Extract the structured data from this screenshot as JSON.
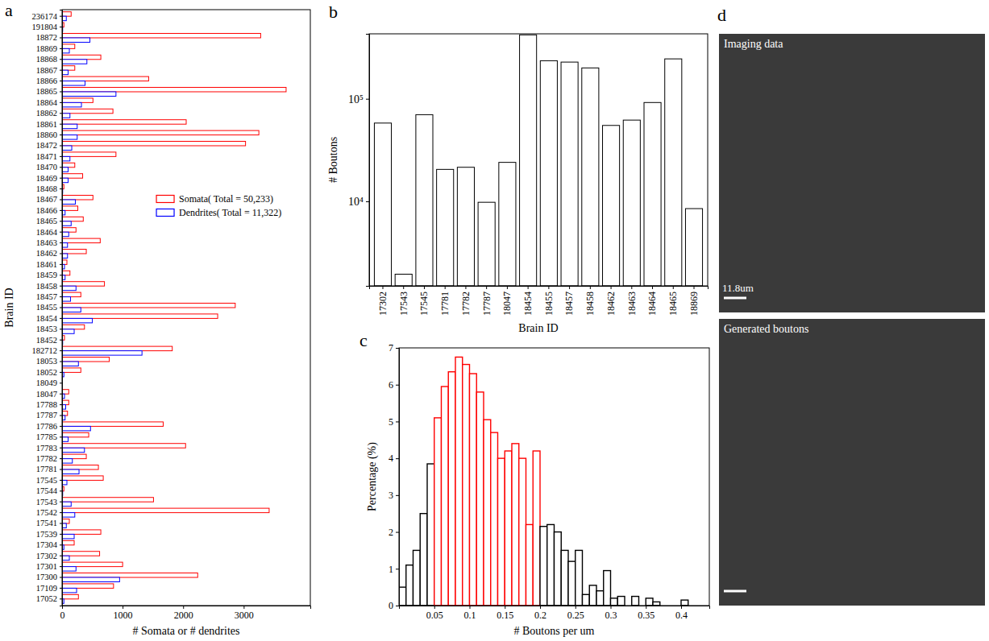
{
  "chart_data": [
    {
      "type": "bar",
      "panel_label": "a",
      "orientation": "horizontal",
      "legend": "center",
      "x_label": "# Somata or # dendrites",
      "y_label": "Brain ID",
      "categories": [
        "236174",
        "191804",
        "18872",
        "18869",
        "18868",
        "18867",
        "18866",
        "18865",
        "18864",
        "18862",
        "18861",
        "18860",
        "18472",
        "18471",
        "18470",
        "18469",
        "18468",
        "18467",
        "18466",
        "18465",
        "18464",
        "18463",
        "18462",
        "18461",
        "18459",
        "18458",
        "18457",
        "18455",
        "18454",
        "18453",
        "18452",
        "182712",
        "18053",
        "18052",
        "18049",
        "18047",
        "17788",
        "17787",
        "17786",
        "17785",
        "17783",
        "17782",
        "17781",
        "17545",
        "17544",
        "17543",
        "17542",
        "17541",
        "17539",
        "17304",
        "17302",
        "17301",
        "17300",
        "17109",
        "17052"
      ],
      "series": [
        {
          "name": "Somata( Total = 50,233)",
          "color": "#ff0000",
          "values": [
            150,
            30,
            3280,
            210,
            640,
            210,
            1430,
            3700,
            510,
            840,
            2050,
            3250,
            3030,
            890,
            210,
            340,
            30,
            510,
            260,
            350,
            230,
            630,
            400,
            80,
            130,
            700,
            310,
            2860,
            2570,
            370,
            40,
            1820,
            780,
            310,
            5,
            110,
            110,
            90,
            1670,
            440,
            2040,
            400,
            600,
            680,
            30,
            1510,
            3420,
            120,
            640,
            200,
            620,
            1000,
            2240,
            850,
            270
          ]
        },
        {
          "name": "Dendrites( Total = 11,322)",
          "color": "#0000ff",
          "values": [
            70,
            10,
            460,
            120,
            410,
            100,
            380,
            890,
            320,
            130,
            250,
            250,
            160,
            130,
            100,
            100,
            10,
            220,
            50,
            150,
            110,
            90,
            90,
            40,
            50,
            230,
            140,
            310,
            500,
            200,
            10,
            1320,
            270,
            30,
            0,
            40,
            60,
            50,
            470,
            100,
            370,
            170,
            280,
            80,
            10,
            150,
            210,
            70,
            200,
            30,
            120,
            230,
            950,
            240,
            30
          ]
        }
      ],
      "xlim": [
        0,
        4100
      ],
      "xticks": [
        0,
        1000,
        2000,
        3000
      ]
    },
    {
      "type": "bar",
      "panel_label": "b",
      "log": "y",
      "x_label": "Brain ID",
      "y_label": "# Boutons",
      "categories": [
        "17302",
        "17543",
        "17545",
        "17781",
        "17782",
        "17787",
        "18047",
        "18454",
        "18455",
        "18457",
        "18458",
        "18462",
        "18463",
        "18464",
        "18465",
        "18869"
      ],
      "values": [
        58000,
        1950,
        70000,
        20500,
        21500,
        9800,
        24000,
        420000,
        235000,
        228000,
        200000,
        55000,
        62000,
        92000,
        245000,
        8500
      ],
      "color": "#000000",
      "ylim": [
        1500,
        430000
      ],
      "yticks": [
        {
          "value": 10000,
          "label": "10⁴"
        },
        {
          "value": 100000,
          "label": "10⁵"
        }
      ]
    },
    {
      "type": "histogram",
      "panel_label": "c",
      "x_label": "# Boutons per um",
      "y_label": "Percentage (%)",
      "bins": [
        0,
        0.01,
        0.02,
        0.03,
        0.04,
        0.05,
        0.06,
        0.07,
        0.08,
        0.09,
        0.1,
        0.11,
        0.12,
        0.13,
        0.14,
        0.15,
        0.16,
        0.17,
        0.18,
        0.19,
        0.2,
        0.21,
        0.22,
        0.23,
        0.24,
        0.25,
        0.26,
        0.27,
        0.28,
        0.29,
        0.3,
        0.31,
        0.32,
        0.33,
        0.34,
        0.35,
        0.36,
        0.37,
        0.38,
        0.39,
        0.4,
        0.41,
        0.42
      ],
      "values": [
        0.5,
        1.1,
        1.5,
        2.5,
        3.85,
        5.1,
        5.95,
        6.35,
        6.75,
        6.55,
        6.3,
        5.8,
        5.05,
        4.7,
        4.0,
        4.2,
        4.4,
        4.0,
        2.2,
        4.2,
        2.15,
        2.2,
        2.0,
        1.5,
        1.2,
        1.5,
        0.3,
        0.55,
        0.4,
        0.95,
        0.2,
        0.25,
        0,
        0.25,
        0,
        0.2,
        0.1,
        0,
        0,
        0,
        0.15,
        0
      ],
      "colors": [
        "#000000",
        "#000000",
        "#000000",
        "#000000",
        "#000000",
        "#ff0000",
        "#ff0000",
        "#ff0000",
        "#ff0000",
        "#ff0000",
        "#ff0000",
        "#ff0000",
        "#ff0000",
        "#ff0000",
        "#ff0000",
        "#ff0000",
        "#ff0000",
        "#ff0000",
        "#ff0000",
        "#ff0000",
        "#000000",
        "#000000",
        "#000000",
        "#000000",
        "#000000",
        "#000000",
        "#000000",
        "#000000",
        "#000000",
        "#000000",
        "#000000",
        "#000000",
        "#000000",
        "#000000",
        "#000000",
        "#000000",
        "#000000",
        "#000000",
        "#000000",
        "#000000",
        "#000000",
        "#000000"
      ],
      "xlim": [
        0,
        0.44
      ],
      "xticks": [
        0.05,
        0.1,
        0.15,
        0.2,
        0.25,
        0.3,
        0.35,
        0.4
      ],
      "ylim": [
        0,
        7
      ],
      "yticks": [
        0,
        1,
        2,
        3,
        4,
        5,
        6,
        7
      ]
    }
  ],
  "image_panel": {
    "panel_label": "d",
    "images": [
      {
        "caption": "Imaging data",
        "scale_bar": "11.8um"
      },
      {
        "caption": "Generated boutons"
      }
    ]
  }
}
